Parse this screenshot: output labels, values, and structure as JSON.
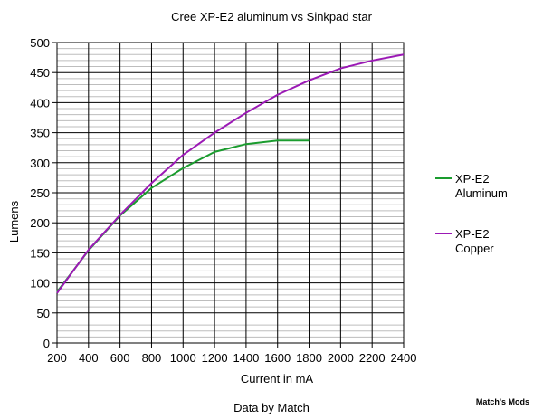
{
  "chart_data": {
    "type": "line",
    "title": "Cree XP-E2 aluminum vs Sinkpad star",
    "subtitle": "Data by Match",
    "xlabel": "Current in mA",
    "ylabel": "Lumens",
    "xlim": [
      200,
      2400
    ],
    "ylim": [
      0,
      500
    ],
    "x_ticks": [
      200,
      400,
      600,
      800,
      1000,
      1200,
      1400,
      1600,
      1800,
      2000,
      2200,
      2400
    ],
    "y_ticks": [
      0,
      50,
      100,
      150,
      200,
      250,
      300,
      350,
      400,
      450,
      500
    ],
    "grid": true,
    "legend_position": "right",
    "series": [
      {
        "name": "XP-E2 Aluminum",
        "color": "#1a9c2e",
        "points": [
          [
            200,
            85
          ],
          [
            400,
            154
          ],
          [
            600,
            212
          ],
          [
            800,
            258
          ],
          [
            1000,
            291
          ],
          [
            1200,
            318
          ],
          [
            1400,
            331
          ],
          [
            1600,
            337
          ],
          [
            1800,
            337
          ]
        ]
      },
      {
        "name": "XP-E2 Copper",
        "color": "#9b19b5",
        "points": [
          [
            200,
            83
          ],
          [
            400,
            155
          ],
          [
            600,
            213
          ],
          [
            800,
            266
          ],
          [
            1000,
            313
          ],
          [
            1200,
            350
          ],
          [
            1400,
            383
          ],
          [
            1600,
            413
          ],
          [
            1800,
            437
          ],
          [
            2000,
            457
          ],
          [
            2200,
            470
          ],
          [
            2400,
            480
          ]
        ]
      }
    ]
  },
  "watermark": "Match's Mods"
}
